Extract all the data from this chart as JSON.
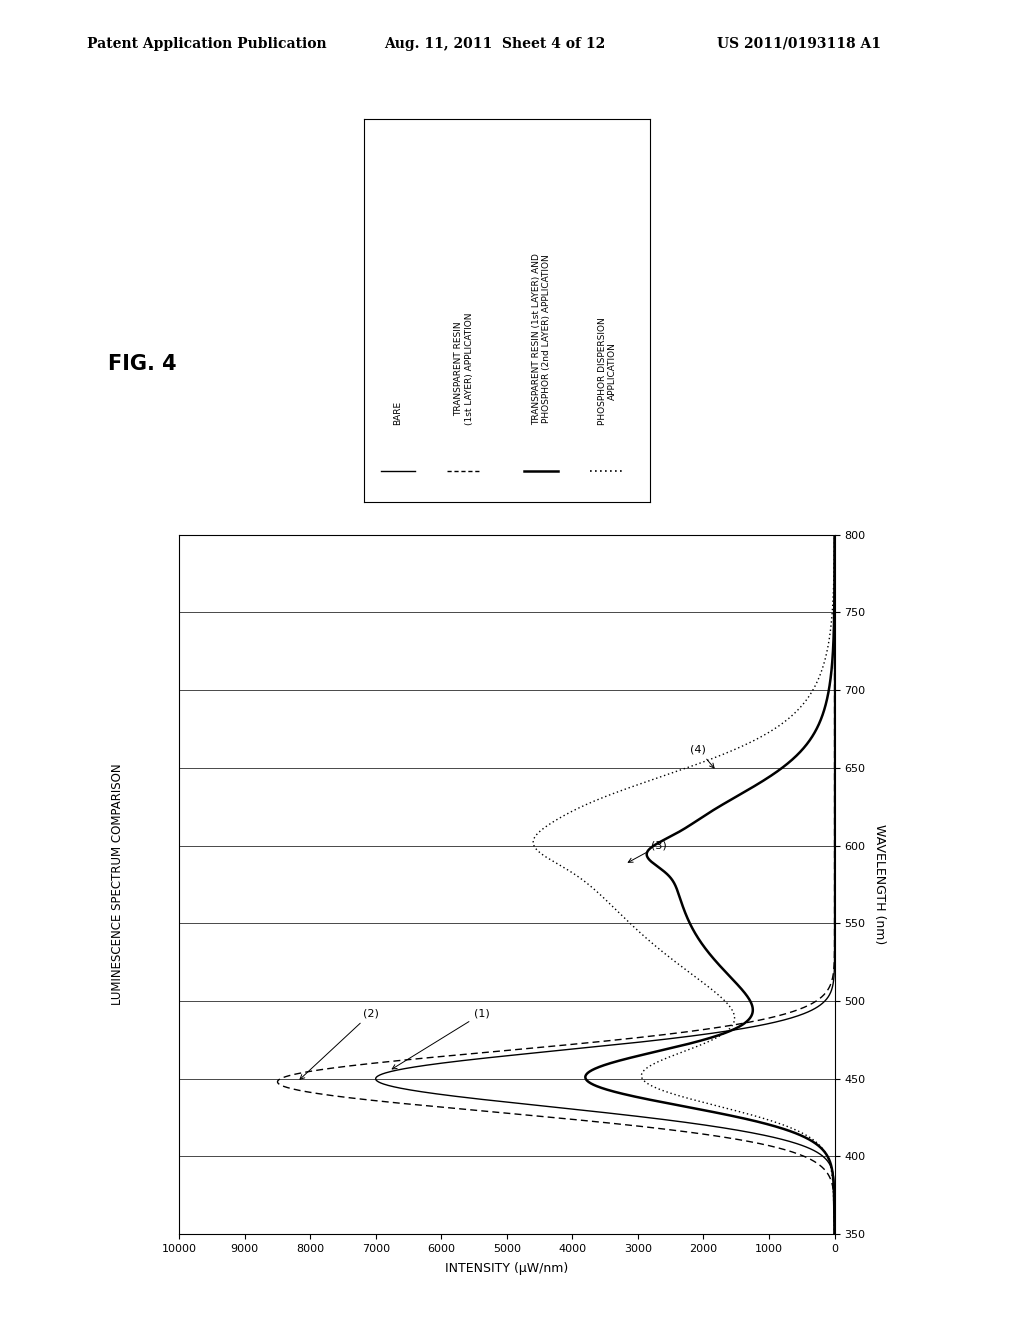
{
  "title_fig": "FIG. 4",
  "title_chart": "LUMINESCENCE SPECTRUM COMPARISON",
  "xlabel_rotated": "WAVELENGTH (nm)",
  "ylabel_rotated": "INTENSITY (μW/nm)",
  "xmin": 350,
  "xmax": 800,
  "intensity_max": 10000,
  "intensity_min": 0,
  "wl_ticks": [
    350,
    400,
    450,
    500,
    550,
    600,
    650,
    700,
    750,
    800
  ],
  "intensity_ticks": [
    0,
    1000,
    2000,
    3000,
    4000,
    5000,
    6000,
    7000,
    8000,
    9000,
    10000
  ],
  "header_line1": "Patent Application Publication",
  "header_date": "Aug. 11, 2011  Sheet 4 of 12",
  "header_patent": "US 2011/0193118 A1",
  "legend_items": [
    {
      "label": "BARE",
      "style": "-",
      "lw": 1.0
    },
    {
      "label": "TRANSPARENT RESIN\n(1st LAYER) APPLICATION",
      "style": "--",
      "lw": 1.0
    },
    {
      "label": "TRANSPARENT RESIN (1st LAYER) AND\nPHOSPHOR (2nd LAYER) APPLICATION",
      "style": "-",
      "lw": 1.8
    },
    {
      "label": "PHOSPHOR DISPERSION\nAPPLICATION",
      "style": ":",
      "lw": 1.2
    }
  ],
  "background_color": "#ffffff"
}
